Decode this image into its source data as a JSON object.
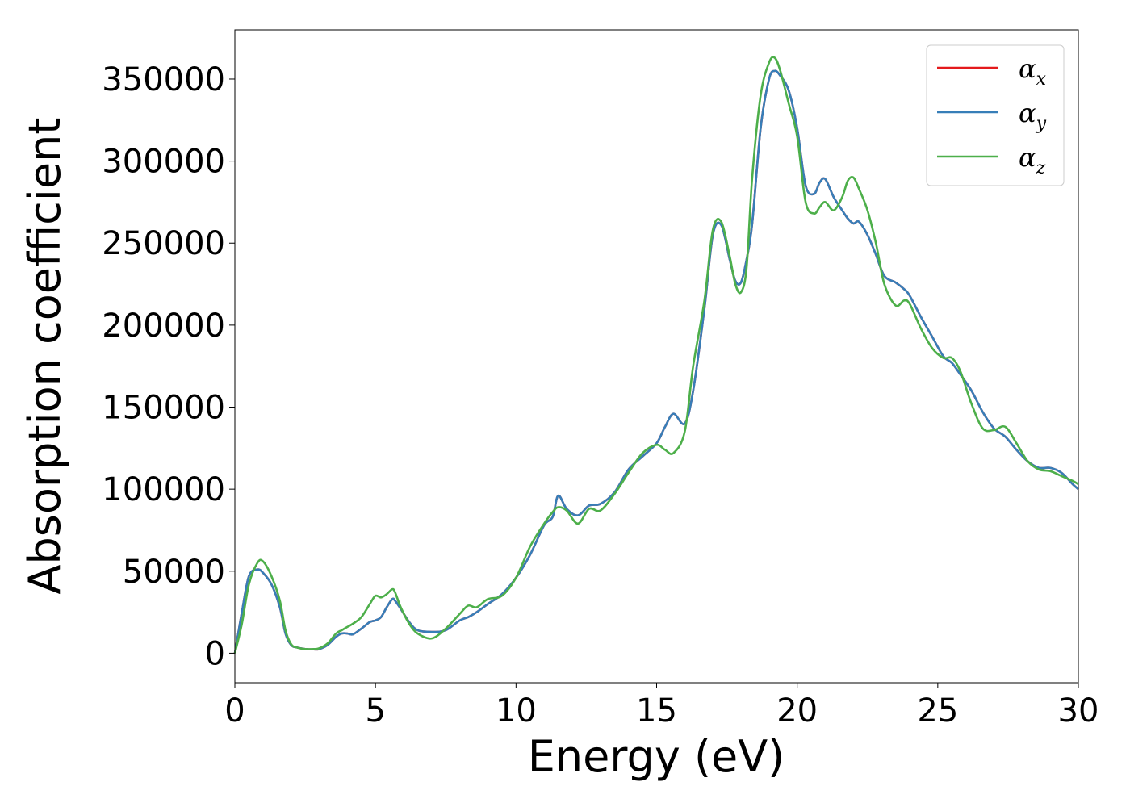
{
  "chart_data": {
    "type": "line",
    "title": "",
    "xlabel": "Energy (eV)",
    "ylabel": "Absorption coefficient",
    "xlim": [
      0,
      30
    ],
    "ylim": [
      -18000,
      380000
    ],
    "xticks": [
      0,
      5,
      10,
      15,
      20,
      25,
      30
    ],
    "yticks": [
      0,
      50000,
      100000,
      150000,
      200000,
      250000,
      300000,
      350000
    ],
    "grid": false,
    "legend_position": "top-right",
    "legend": [
      {
        "base": "α",
        "sub": "x",
        "color": "#e41a1c"
      },
      {
        "base": "α",
        "sub": "y",
        "color": "#377eb8"
      },
      {
        "base": "α",
        "sub": "z",
        "color": "#4daf4a"
      }
    ],
    "x": [
      0,
      0.25,
      0.5,
      0.8,
      1.0,
      1.3,
      1.6,
      1.8,
      2.0,
      2.2,
      2.5,
      2.8,
      3.0,
      3.3,
      3.6,
      3.8,
      4.0,
      4.2,
      4.5,
      4.8,
      5.0,
      5.2,
      5.4,
      5.6,
      5.7,
      5.9,
      6.2,
      6.5,
      7.0,
      7.5,
      8.0,
      8.3,
      8.6,
      9.0,
      9.5,
      10.0,
      10.5,
      11.0,
      11.3,
      11.5,
      11.8,
      12.2,
      12.6,
      13.0,
      13.5,
      14.0,
      14.5,
      15.0,
      15.3,
      15.6,
      16.0,
      16.3,
      16.7,
      17.0,
      17.3,
      17.6,
      17.8,
      18.0,
      18.2,
      18.4,
      18.7,
      19.0,
      19.2,
      19.4,
      19.7,
      20.0,
      20.3,
      20.6,
      20.8,
      21.0,
      21.3,
      21.6,
      21.8,
      22.0,
      22.2,
      22.5,
      22.8,
      23.1,
      23.5,
      23.8,
      24.0,
      24.4,
      24.8,
      25.2,
      25.5,
      25.8,
      26.2,
      26.6,
      27.0,
      27.4,
      27.8,
      28.2,
      28.6,
      29.0,
      29.4,
      29.8,
      30.0
    ],
    "series": [
      {
        "name": "α_x",
        "color": "#e41a1c",
        "values": [
          0,
          25000,
          47000,
          51000,
          49000,
          42000,
          28000,
          12000,
          5000,
          3500,
          2500,
          2300,
          2500,
          5000,
          10000,
          12000,
          12000,
          11500,
          15000,
          19000,
          20000,
          22000,
          28000,
          33000,
          32000,
          27000,
          19000,
          14000,
          13000,
          14000,
          20000,
          22000,
          25000,
          30000,
          36000,
          46000,
          60000,
          78000,
          83000,
          96000,
          88000,
          84000,
          90000,
          91000,
          98000,
          112000,
          120000,
          128000,
          138000,
          146000,
          140000,
          160000,
          210000,
          255000,
          261000,
          240000,
          227000,
          226000,
          240000,
          262000,
          320000,
          350000,
          355000,
          352000,
          343000,
          320000,
          285000,
          280000,
          287000,
          289000,
          278000,
          270000,
          265000,
          262000,
          263000,
          255000,
          243000,
          230000,
          226000,
          222000,
          218000,
          205000,
          193000,
          181000,
          177000,
          170000,
          160000,
          147000,
          137000,
          132000,
          124000,
          117000,
          113000,
          113000,
          110000,
          103000,
          100000
        ]
      },
      {
        "name": "α_y",
        "color": "#377eb8",
        "values": [
          0,
          25000,
          47000,
          51000,
          49000,
          42000,
          28000,
          12000,
          5000,
          3500,
          2500,
          2300,
          2500,
          5000,
          10000,
          12000,
          12000,
          11500,
          15000,
          19000,
          20000,
          22000,
          28000,
          33000,
          32000,
          27000,
          19000,
          14000,
          13000,
          14000,
          20000,
          22000,
          25000,
          30000,
          36000,
          46000,
          60000,
          78000,
          83000,
          96000,
          88000,
          84000,
          90000,
          91000,
          98000,
          112000,
          120000,
          128000,
          138000,
          146000,
          140000,
          160000,
          210000,
          255000,
          261000,
          240000,
          227000,
          226000,
          240000,
          262000,
          320000,
          350000,
          355000,
          352000,
          343000,
          320000,
          285000,
          280000,
          287000,
          289000,
          278000,
          270000,
          265000,
          262000,
          263000,
          255000,
          243000,
          230000,
          226000,
          222000,
          218000,
          205000,
          193000,
          181000,
          177000,
          170000,
          160000,
          147000,
          137000,
          132000,
          124000,
          117000,
          113000,
          113000,
          110000,
          103000,
          100000
        ]
      },
      {
        "name": "α_z",
        "color": "#4daf4a",
        "values": [
          0,
          18000,
          42000,
          55000,
          56000,
          47000,
          32000,
          14000,
          5500,
          3500,
          2500,
          2500,
          3000,
          6000,
          12000,
          14000,
          16000,
          18000,
          22000,
          30000,
          35000,
          34000,
          36000,
          39000,
          37000,
          28000,
          18000,
          12000,
          9000,
          15000,
          24000,
          29000,
          28000,
          33000,
          35000,
          46000,
          65000,
          79000,
          86000,
          89000,
          87000,
          79000,
          88000,
          87000,
          97000,
          110000,
          122000,
          127000,
          124000,
          122000,
          135000,
          175000,
          215000,
          258000,
          263000,
          242000,
          225000,
          220000,
          235000,
          290000,
          340000,
          360000,
          363000,
          355000,
          335000,
          315000,
          275000,
          268000,
          272000,
          275000,
          270000,
          278000,
          288000,
          290000,
          283000,
          270000,
          250000,
          225000,
          212000,
          215000,
          213000,
          198000,
          186000,
          180000,
          180000,
          172000,
          152000,
          137000,
          136000,
          138000,
          128000,
          117000,
          112000,
          111000,
          108000,
          105000,
          103000
        ]
      }
    ]
  }
}
